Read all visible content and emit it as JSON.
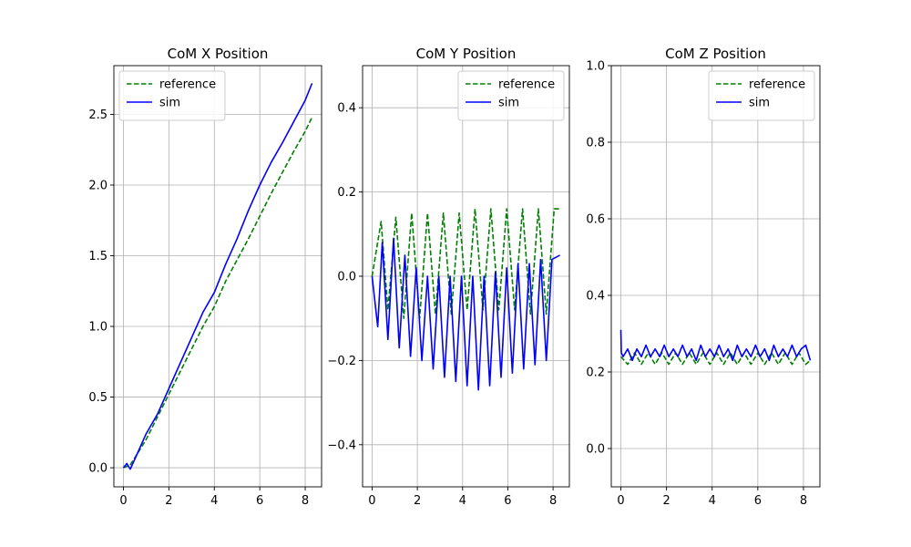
{
  "chart_data": [
    {
      "type": "line",
      "title": "CoM X Position",
      "xlabel": "",
      "ylabel": "",
      "xlim": [
        -0.42,
        8.72
      ],
      "ylim": [
        -0.135,
        2.845
      ],
      "xticks": [
        0,
        2,
        4,
        6,
        8
      ],
      "yticks": [
        0.0,
        0.5,
        1.0,
        1.5,
        2.0,
        2.5
      ],
      "ytick_labels": [
        "0.0",
        "0.5",
        "1.0",
        "1.5",
        "2.0",
        "2.5"
      ],
      "grid": true,
      "legend": "upper-left",
      "series": [
        {
          "name": "reference",
          "color": "#008000",
          "style": "dashed",
          "x": [
            0,
            0.3,
            0.5,
            1.0,
            1.5,
            2.0,
            2.5,
            3.0,
            3.5,
            4.0,
            4.5,
            5.0,
            5.5,
            6.0,
            6.5,
            7.0,
            7.5,
            8.0,
            8.3
          ],
          "y": [
            0.0,
            0.02,
            0.07,
            0.2,
            0.36,
            0.52,
            0.68,
            0.84,
            1.0,
            1.14,
            1.32,
            1.47,
            1.62,
            1.78,
            1.94,
            2.09,
            2.24,
            2.38,
            2.48
          ]
        },
        {
          "name": "sim",
          "color": "#0000ff",
          "style": "solid",
          "x": [
            0,
            0.15,
            0.3,
            0.5,
            1.0,
            1.5,
            2.0,
            2.5,
            3.0,
            3.5,
            4.0,
            4.5,
            5.0,
            5.5,
            6.0,
            6.5,
            7.0,
            7.5,
            8.0,
            8.3
          ],
          "y": [
            0.0,
            0.03,
            -0.01,
            0.06,
            0.24,
            0.38,
            0.56,
            0.74,
            0.92,
            1.1,
            1.24,
            1.44,
            1.62,
            1.82,
            2.0,
            2.16,
            2.3,
            2.45,
            2.6,
            2.72
          ]
        }
      ]
    },
    {
      "type": "line",
      "title": "CoM Y Position",
      "xlabel": "",
      "ylabel": "",
      "xlim": [
        -0.42,
        8.72
      ],
      "ylim": [
        -0.5,
        0.5
      ],
      "xticks": [
        0,
        2,
        4,
        6,
        8
      ],
      "yticks": [
        -0.4,
        -0.2,
        0.0,
        0.2,
        0.4
      ],
      "ytick_labels": [
        "−0.4",
        "−0.2",
        "0.0",
        "0.2",
        "0.4"
      ],
      "grid": true,
      "legend": "upper-right",
      "series": [
        {
          "name": "reference",
          "color": "#008000",
          "style": "dashed",
          "x": [
            0,
            0.4,
            0.7,
            1.05,
            1.4,
            1.75,
            2.1,
            2.45,
            2.8,
            3.15,
            3.5,
            3.85,
            4.2,
            4.55,
            4.9,
            5.25,
            5.6,
            5.95,
            6.3,
            6.65,
            7.0,
            7.35,
            7.7,
            8.05,
            8.3
          ],
          "y": [
            0.0,
            0.13,
            -0.08,
            0.14,
            -0.1,
            0.15,
            -0.1,
            0.15,
            -0.09,
            0.15,
            -0.09,
            0.15,
            -0.08,
            0.16,
            -0.08,
            0.16,
            -0.08,
            0.16,
            -0.08,
            0.16,
            -0.09,
            0.16,
            -0.09,
            0.16,
            0.16
          ]
        },
        {
          "name": "sim",
          "color": "#0000ff",
          "style": "solid",
          "x": [
            0,
            0.25,
            0.45,
            0.7,
            0.95,
            1.2,
            1.45,
            1.7,
            1.95,
            2.2,
            2.45,
            2.7,
            2.95,
            3.2,
            3.45,
            3.7,
            3.95,
            4.2,
            4.45,
            4.7,
            4.95,
            5.2,
            5.45,
            5.7,
            5.95,
            6.2,
            6.45,
            6.7,
            6.95,
            7.2,
            7.45,
            7.7,
            7.95,
            8.3
          ],
          "y": [
            0.0,
            -0.12,
            0.08,
            -0.15,
            0.09,
            -0.17,
            0.05,
            -0.19,
            0.02,
            -0.2,
            0.0,
            -0.22,
            0.0,
            -0.24,
            0.0,
            -0.25,
            0.0,
            -0.26,
            0.0,
            -0.27,
            0.0,
            -0.26,
            0.01,
            -0.24,
            0.02,
            -0.23,
            0.03,
            -0.22,
            0.03,
            -0.21,
            0.04,
            -0.2,
            0.04,
            0.05
          ]
        }
      ]
    },
    {
      "type": "line",
      "title": "CoM Z Position",
      "xlabel": "",
      "ylabel": "",
      "xlim": [
        -0.42,
        8.72
      ],
      "ylim": [
        -0.1,
        1.0
      ],
      "xticks": [
        0,
        2,
        4,
        6,
        8
      ],
      "yticks": [
        0.0,
        0.2,
        0.4,
        0.6,
        0.8,
        1.0
      ],
      "ytick_labels": [
        "0.0",
        "0.2",
        "0.4",
        "0.6",
        "0.8",
        "1.0"
      ],
      "grid": true,
      "legend": "upper-right",
      "series": [
        {
          "name": "reference",
          "color": "#008000",
          "style": "dashed",
          "x": [
            0,
            0.3,
            0.6,
            0.9,
            1.2,
            1.5,
            1.8,
            2.1,
            2.4,
            2.7,
            3.0,
            3.3,
            3.6,
            3.9,
            4.2,
            4.5,
            4.8,
            5.1,
            5.4,
            5.7,
            6.0,
            6.3,
            6.6,
            6.9,
            7.2,
            7.5,
            7.8,
            8.1,
            8.3
          ],
          "y": [
            0.24,
            0.22,
            0.25,
            0.22,
            0.25,
            0.22,
            0.25,
            0.22,
            0.25,
            0.22,
            0.25,
            0.22,
            0.25,
            0.22,
            0.25,
            0.22,
            0.25,
            0.22,
            0.25,
            0.22,
            0.25,
            0.22,
            0.25,
            0.22,
            0.25,
            0.22,
            0.25,
            0.22,
            0.23
          ]
        },
        {
          "name": "sim",
          "color": "#0000ff",
          "style": "solid",
          "x": [
            0,
            0.02,
            0.1,
            0.3,
            0.5,
            0.7,
            0.9,
            1.1,
            1.3,
            1.5,
            1.7,
            1.9,
            2.1,
            2.3,
            2.5,
            2.7,
            2.9,
            3.1,
            3.3,
            3.5,
            3.7,
            3.9,
            4.1,
            4.3,
            4.5,
            4.7,
            4.9,
            5.1,
            5.3,
            5.5,
            5.7,
            5.9,
            6.1,
            6.3,
            6.5,
            6.7,
            6.9,
            7.1,
            7.3,
            7.5,
            7.7,
            7.9,
            8.1,
            8.3
          ],
          "y": [
            0.31,
            0.25,
            0.24,
            0.26,
            0.23,
            0.26,
            0.24,
            0.27,
            0.24,
            0.26,
            0.24,
            0.27,
            0.24,
            0.26,
            0.24,
            0.27,
            0.24,
            0.26,
            0.23,
            0.27,
            0.24,
            0.26,
            0.24,
            0.27,
            0.24,
            0.26,
            0.23,
            0.27,
            0.24,
            0.26,
            0.24,
            0.27,
            0.24,
            0.26,
            0.23,
            0.27,
            0.24,
            0.26,
            0.24,
            0.27,
            0.24,
            0.26,
            0.27,
            0.23
          ]
        }
      ]
    }
  ]
}
